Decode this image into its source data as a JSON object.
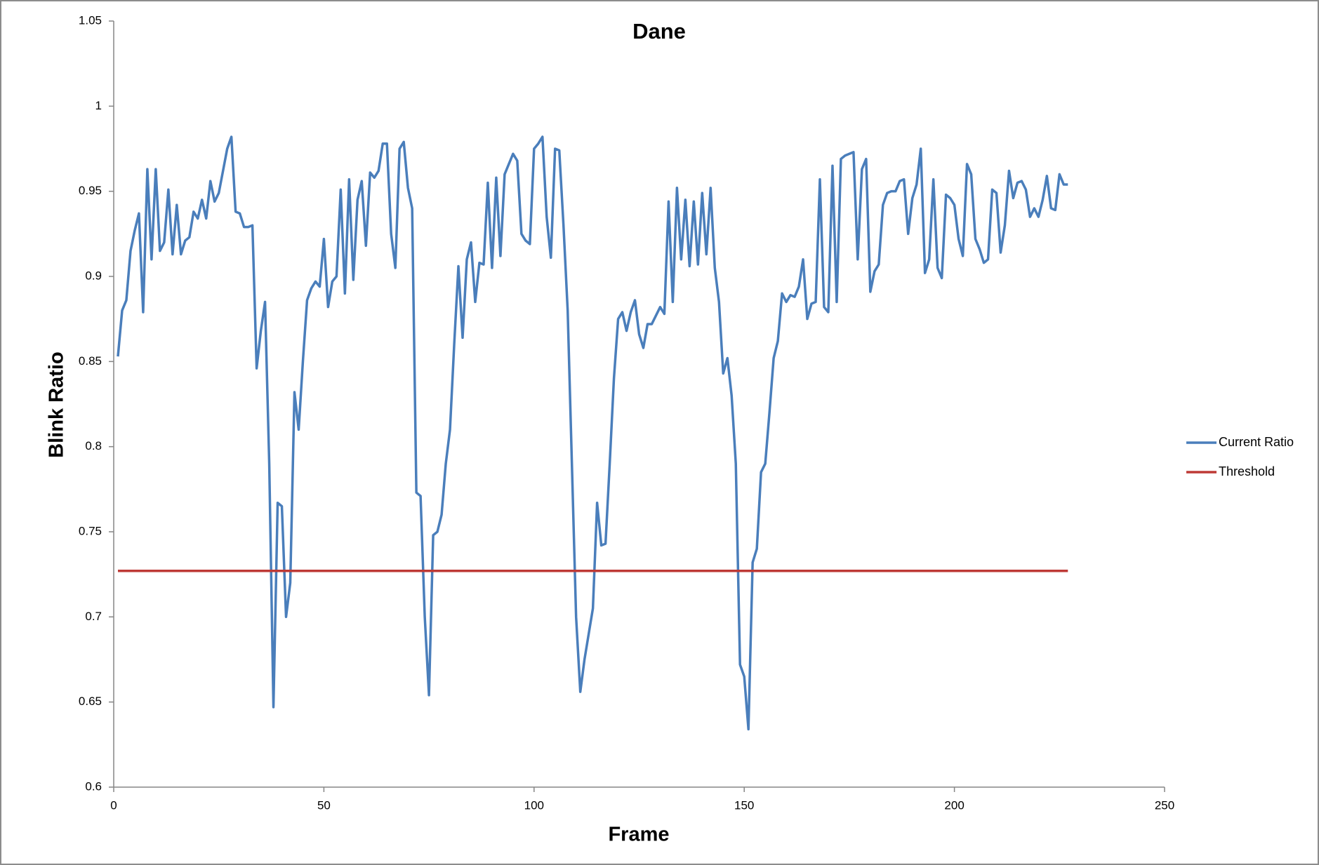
{
  "chart_data": {
    "type": "line",
    "title": "Dane",
    "x_label": "Frame",
    "y_label": "Blink Ratio",
    "xlim": [
      0,
      250
    ],
    "xticks": [
      0,
      50,
      100,
      150,
      200,
      250
    ],
    "ylim": [
      0.6,
      1.05
    ],
    "yticks": [
      0.6,
      0.65,
      0.7,
      0.75,
      0.8,
      0.85,
      0.9,
      0.95,
      1,
      1.05
    ],
    "grid": false,
    "legend": "right",
    "series": [
      {
        "name": "Current Ratio",
        "color": "#4a7ebb",
        "x": [
          1,
          2,
          3,
          4,
          5,
          6,
          7,
          8,
          9,
          10,
          11,
          12,
          13,
          14,
          15,
          16,
          17,
          18,
          19,
          20,
          21,
          22,
          23,
          24,
          25,
          26,
          27,
          28,
          29,
          30,
          31,
          32,
          33,
          34,
          35,
          36,
          37,
          38,
          39,
          40,
          41,
          42,
          43,
          44,
          45,
          46,
          47,
          48,
          49,
          50,
          51,
          52,
          53,
          54,
          55,
          56,
          57,
          58,
          59,
          60,
          61,
          62,
          63,
          64,
          65,
          66,
          67,
          68,
          69,
          70,
          71,
          72,
          73,
          74,
          75,
          76,
          77,
          78,
          79,
          80,
          81,
          82,
          83,
          84,
          85,
          86,
          87,
          88,
          89,
          90,
          91,
          92,
          93,
          94,
          95,
          96,
          97,
          98,
          99,
          100,
          101,
          102,
          103,
          104,
          105,
          106,
          107,
          108,
          109,
          110,
          111,
          112,
          113,
          114,
          115,
          116,
          117,
          118,
          119,
          120,
          121,
          122,
          123,
          124,
          125,
          126,
          127,
          128,
          129,
          130,
          131,
          132,
          133,
          134,
          135,
          136,
          137,
          138,
          139,
          140,
          141,
          142,
          143,
          144,
          145,
          146,
          147,
          148,
          149,
          150,
          151,
          152,
          153,
          154,
          155,
          156,
          157,
          158,
          159,
          160,
          161,
          162,
          163,
          164,
          165,
          166,
          167,
          168,
          169,
          170,
          171,
          172,
          173,
          174,
          175,
          176,
          177,
          178,
          179,
          180,
          181,
          182,
          183,
          184,
          185,
          186,
          187,
          188,
          189,
          190,
          191,
          192,
          193,
          194,
          195,
          196,
          197,
          198,
          199,
          200,
          201,
          202,
          203,
          204,
          205,
          206,
          207,
          208,
          209,
          210,
          211,
          212,
          213,
          214,
          215,
          216,
          217,
          218,
          219,
          220,
          221,
          222,
          223,
          224,
          225,
          226,
          227
        ],
        "values": [
          0.853,
          0.88,
          0.886,
          0.915,
          0.927,
          0.937,
          0.879,
          0.963,
          0.91,
          0.963,
          0.915,
          0.92,
          0.951,
          0.913,
          0.942,
          0.913,
          0.921,
          0.923,
          0.938,
          0.934,
          0.945,
          0.934,
          0.956,
          0.944,
          0.949,
          0.962,
          0.975,
          0.982,
          0.938,
          0.937,
          0.929,
          0.929,
          0.93,
          0.846,
          0.868,
          0.885,
          0.79,
          0.647,
          0.767,
          0.765,
          0.7,
          0.72,
          0.832,
          0.81,
          0.85,
          0.886,
          0.893,
          0.897,
          0.894,
          0.922,
          0.882,
          0.897,
          0.9,
          0.951,
          0.89,
          0.957,
          0.898,
          0.945,
          0.956,
          0.918,
          0.961,
          0.958,
          0.962,
          0.978,
          0.978,
          0.925,
          0.905,
          0.975,
          0.979,
          0.952,
          0.94,
          0.773,
          0.771,
          0.7,
          0.654,
          0.748,
          0.75,
          0.76,
          0.79,
          0.81,
          0.86,
          0.906,
          0.864,
          0.91,
          0.92,
          0.885,
          0.908,
          0.907,
          0.955,
          0.905,
          0.958,
          0.912,
          0.96,
          0.966,
          0.972,
          0.968,
          0.925,
          0.921,
          0.919,
          0.975,
          0.978,
          0.982,
          0.935,
          0.911,
          0.975,
          0.974,
          0.93,
          0.88,
          0.79,
          0.7,
          0.656,
          0.675,
          0.69,
          0.705,
          0.767,
          0.742,
          0.743,
          0.79,
          0.84,
          0.875,
          0.879,
          0.868,
          0.879,
          0.886,
          0.866,
          0.858,
          0.872,
          0.872,
          0.877,
          0.882,
          0.878,
          0.944,
          0.885,
          0.952,
          0.91,
          0.945,
          0.906,
          0.944,
          0.907,
          0.949,
          0.913,
          0.952,
          0.905,
          0.885,
          0.843,
          0.852,
          0.83,
          0.79,
          0.672,
          0.665,
          0.634,
          0.732,
          0.74,
          0.785,
          0.79,
          0.82,
          0.852,
          0.862,
          0.89,
          0.885,
          0.889,
          0.888,
          0.894,
          0.91,
          0.875,
          0.884,
          0.885,
          0.957,
          0.882,
          0.879,
          0.965,
          0.885,
          0.969,
          0.971,
          0.972,
          0.973,
          0.91,
          0.963,
          0.969,
          0.891,
          0.903,
          0.907,
          0.942,
          0.949,
          0.95,
          0.95,
          0.956,
          0.957,
          0.925,
          0.946,
          0.954,
          0.975,
          0.902,
          0.91,
          0.957,
          0.905,
          0.899,
          0.948,
          0.946,
          0.942,
          0.922,
          0.912,
          0.966,
          0.96,
          0.922,
          0.916,
          0.908,
          0.91,
          0.951,
          0.949,
          0.914,
          0.93,
          0.962,
          0.946,
          0.955,
          0.956,
          0.951,
          0.935,
          0.94,
          0.935,
          0.945,
          0.959,
          0.94,
          0.939,
          0.96,
          0.954,
          0.954
        ]
      },
      {
        "name": "Threshold",
        "color": "#be3a36",
        "x": [
          1,
          227
        ],
        "values": [
          0.727,
          0.727
        ]
      }
    ]
  }
}
